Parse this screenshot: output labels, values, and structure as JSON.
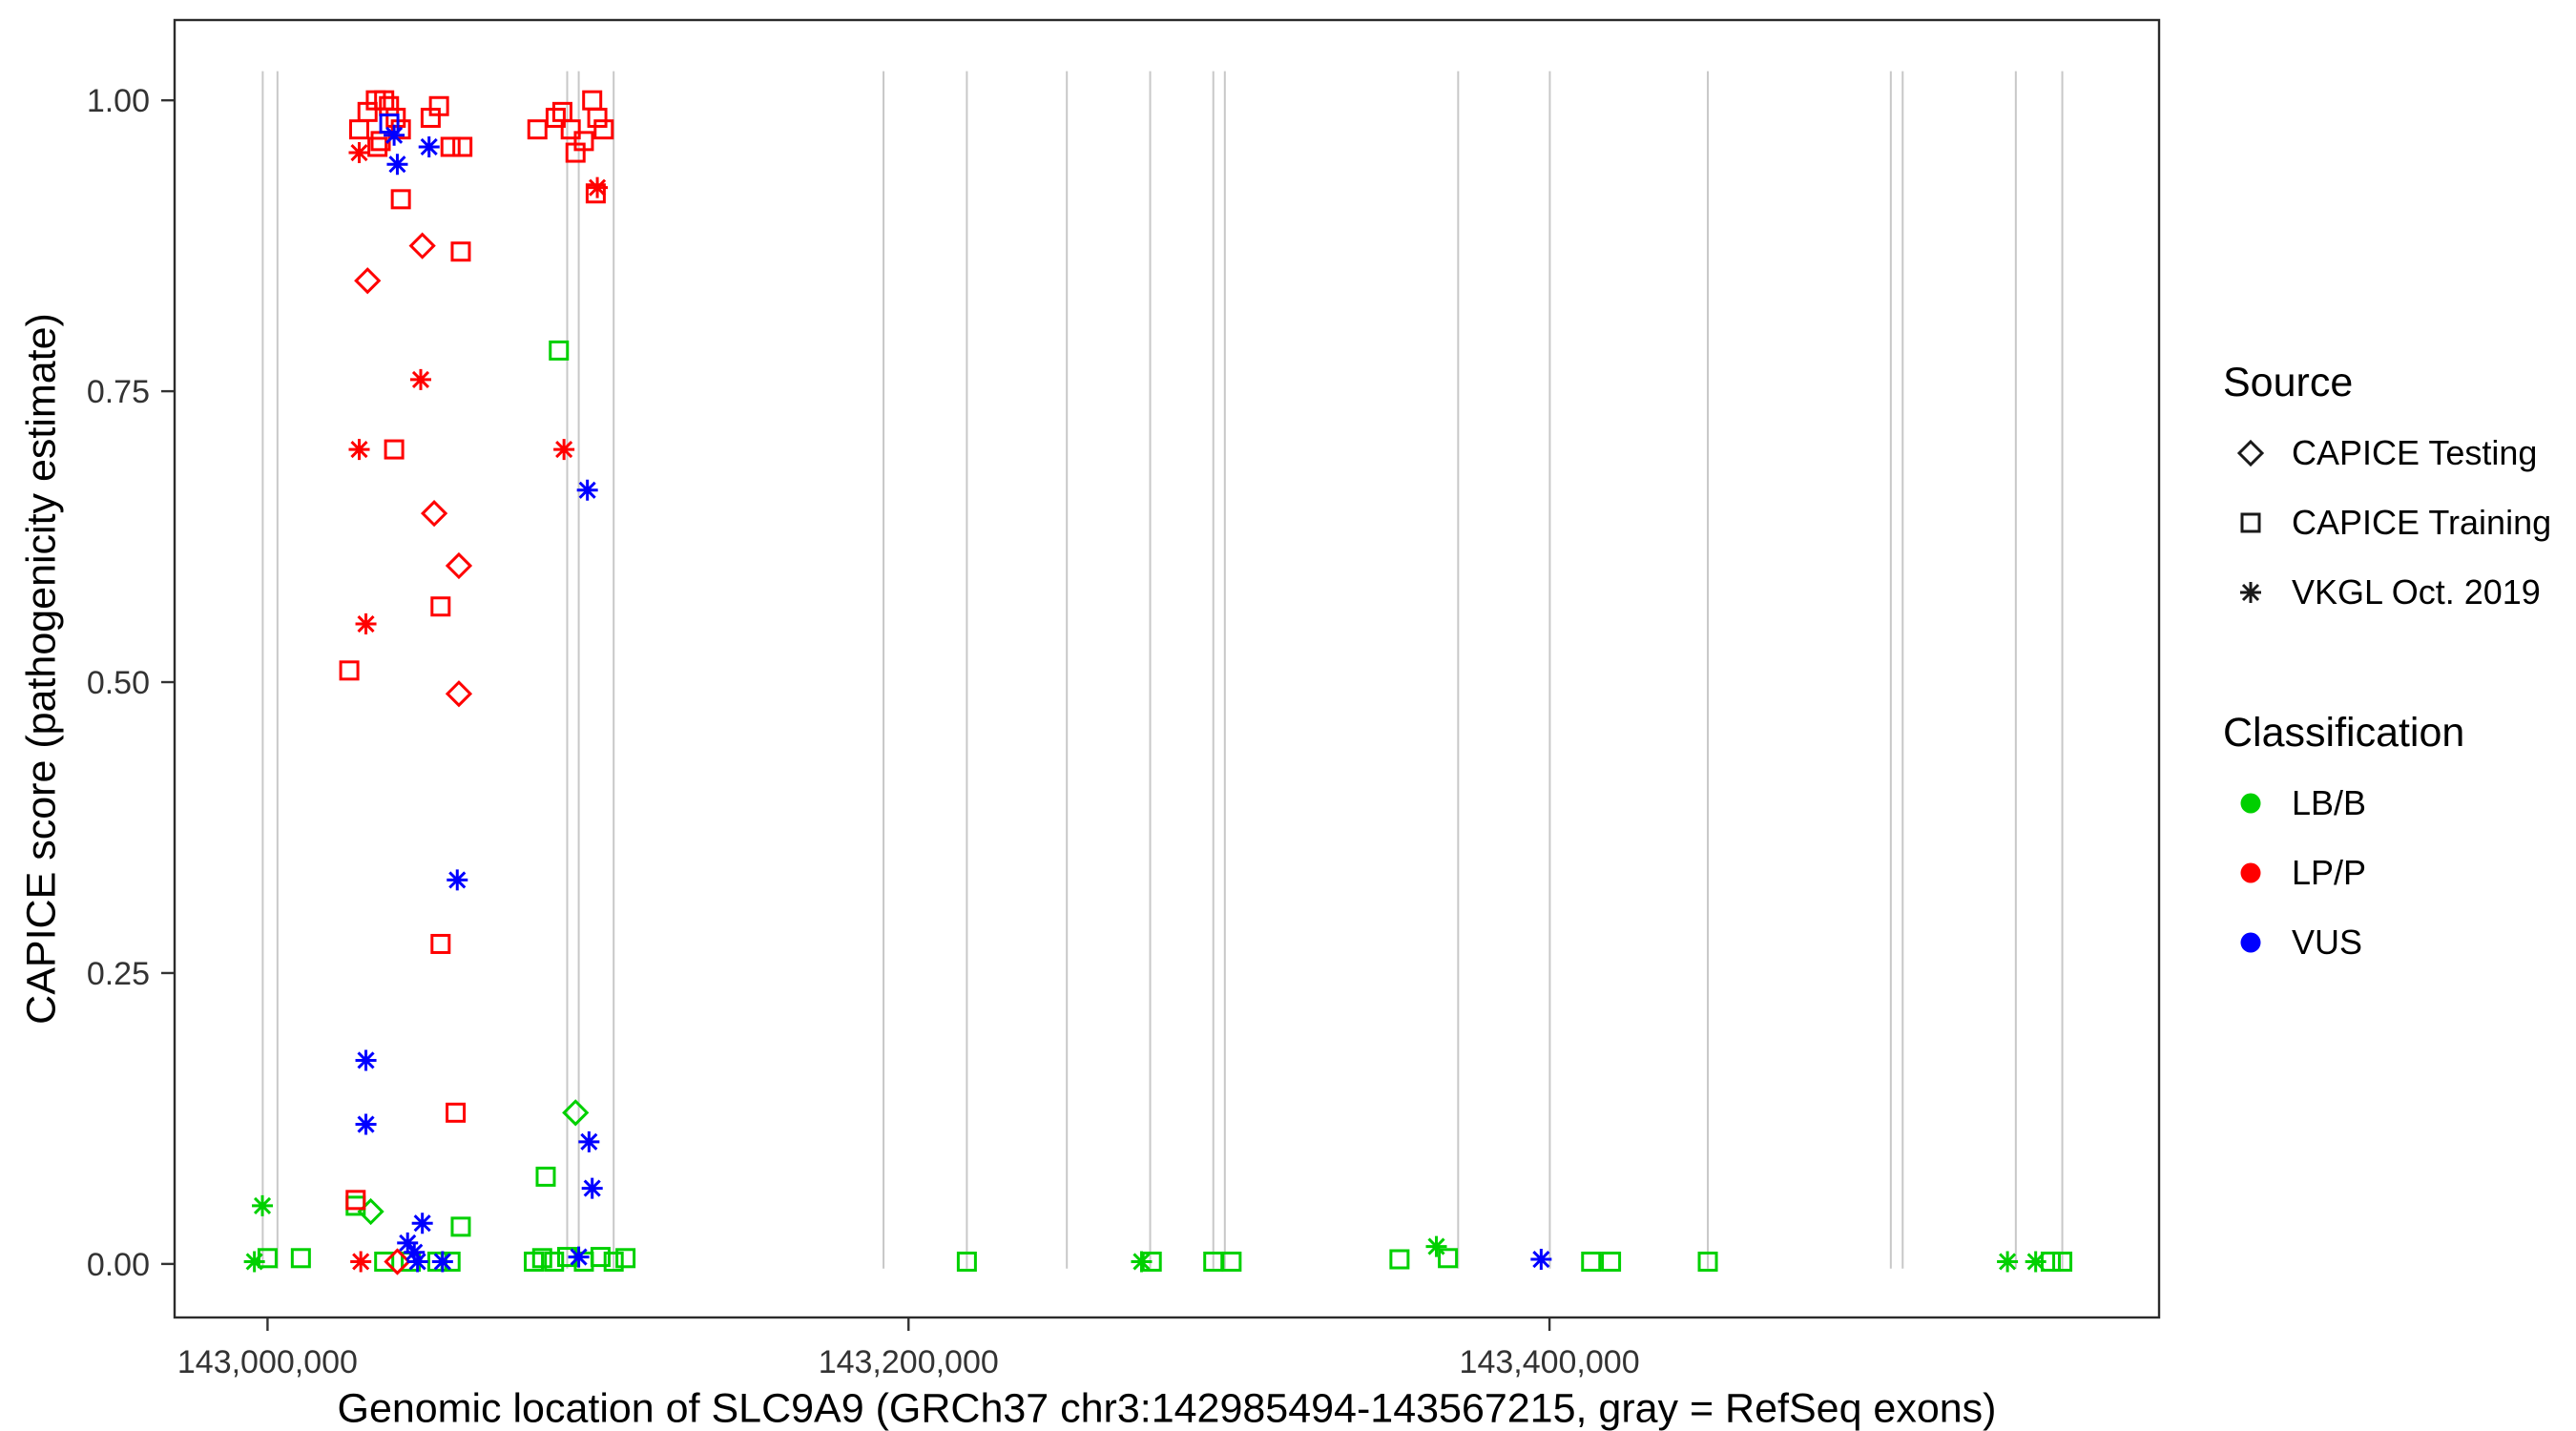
{
  "figure": {
    "xlabel": "Genomic location of SLC9A9 (GRCh37 chr3:142985494-143567215, gray = RefSeq exons)",
    "ylabel": "CAPICE score (pathogenicity estimate)"
  },
  "legend": {
    "source_title": "Source",
    "source_items": [
      {
        "label": "CAPICE Testing",
        "shape": "diamond"
      },
      {
        "label": "CAPICE Training",
        "shape": "square"
      },
      {
        "label": "VKGL Oct. 2019",
        "shape": "asterisk"
      }
    ],
    "classification_title": "Classification",
    "classification_items": [
      {
        "label": "LB/B",
        "color": "#00d000"
      },
      {
        "label": "LP/P",
        "color": "#ff0000"
      },
      {
        "label": "VUS",
        "color": "#0000ff"
      }
    ]
  },
  "chart_data": {
    "type": "scatter",
    "title": "",
    "xlabel": "Genomic location of SLC9A9 (GRCh37 chr3:142985494-143567215, gray = RefSeq exons)",
    "ylabel": "CAPICE score (pathogenicity estimate)",
    "xlim": [
      142971000,
      143590200
    ],
    "ylim": [
      -0.046,
      1.069
    ],
    "grid": false,
    "legend_position": "right",
    "x_ticks": [
      {
        "value": 143000000,
        "label": "143,000,000"
      },
      {
        "value": 143200000,
        "label": "143,200,000"
      },
      {
        "value": 143400000,
        "label": "143,400,000"
      }
    ],
    "y_ticks": [
      {
        "value": 0.0,
        "label": "0.00"
      },
      {
        "value": 0.25,
        "label": "0.25"
      },
      {
        "value": 0.5,
        "label": "0.50"
      },
      {
        "value": 0.75,
        "label": "0.75"
      },
      {
        "value": 1.0,
        "label": "1.00"
      }
    ],
    "exon_color": "#c8c8c8",
    "exon_positions": [
      142998500,
      143003100,
      143093500,
      143097100,
      143108000,
      143192200,
      143218200,
      143249400,
      143275400,
      143295100,
      143298700,
      143371500,
      143400100,
      143449400,
      143506500,
      143510200,
      143545500,
      143560000
    ],
    "colors": {
      "LB/B": "#00d000",
      "LP/P": "#ff0000",
      "VUS": "#0000ff"
    },
    "shape_by_source": {
      "testing": "diamond",
      "training": "square",
      "vkgl": "asterisk"
    },
    "source_labels": {
      "testing": "CAPICE Testing",
      "training": "CAPICE Training",
      "vkgl": "VKGL Oct. 2019"
    },
    "points": [
      [
        142995900,
        0.002,
        "vkgl",
        "LB/B"
      ],
      [
        142998400,
        0.05,
        "vkgl",
        "LB/B"
      ],
      [
        143000000,
        0.005,
        "training",
        "LB/B"
      ],
      [
        143010400,
        0.005,
        "training",
        "LB/B"
      ],
      [
        143027500,
        0.05,
        "training",
        "LB/B"
      ],
      [
        143032200,
        0.045,
        "testing",
        "LB/B"
      ],
      [
        143036400,
        0.002,
        "training",
        "LB/B"
      ],
      [
        143044700,
        0.002,
        "training",
        "LB/B"
      ],
      [
        143053000,
        0.002,
        "training",
        "LB/B"
      ],
      [
        143057100,
        0.002,
        "training",
        "LB/B"
      ],
      [
        143060300,
        0.032,
        "training",
        "LB/B"
      ],
      [
        143083100,
        0.002,
        "training",
        "LB/B"
      ],
      [
        143085700,
        0.005,
        "training",
        "LB/B"
      ],
      [
        143086800,
        0.075,
        "training",
        "LB/B"
      ],
      [
        143089400,
        0.002,
        "training",
        "LB/B"
      ],
      [
        143090900,
        0.785,
        "training",
        "LB/B"
      ],
      [
        143093500,
        0.006,
        "training",
        "LB/B"
      ],
      [
        143096100,
        0.13,
        "testing",
        "LB/B"
      ],
      [
        143098700,
        0.002,
        "training",
        "LB/B"
      ],
      [
        143103900,
        0.006,
        "training",
        "LB/B"
      ],
      [
        143108000,
        0.002,
        "training",
        "LB/B"
      ],
      [
        143111700,
        0.005,
        "training",
        "LB/B"
      ],
      [
        143218200,
        0.002,
        "training",
        "LB/B"
      ],
      [
        143272700,
        0.002,
        "vkgl",
        "LB/B"
      ],
      [
        143275900,
        0.002,
        "training",
        "LB/B"
      ],
      [
        143295100,
        0.002,
        "training",
        "LB/B"
      ],
      [
        143300800,
        0.002,
        "training",
        "LB/B"
      ],
      [
        143353200,
        0.004,
        "training",
        "LB/B"
      ],
      [
        143364700,
        0.015,
        "vkgl",
        "LB/B"
      ],
      [
        143368300,
        0.005,
        "training",
        "LB/B"
      ],
      [
        143413000,
        0.002,
        "training",
        "LB/B"
      ],
      [
        143419200,
        0.002,
        "training",
        "LB/B"
      ],
      [
        143449400,
        0.002,
        "training",
        "LB/B"
      ],
      [
        143542900,
        0.002,
        "vkgl",
        "LB/B"
      ],
      [
        143551700,
        0.002,
        "vkgl",
        "LB/B"
      ],
      [
        143556400,
        0.002,
        "training",
        "LB/B"
      ],
      [
        143560000,
        0.002,
        "training",
        "LB/B"
      ],
      [
        143028600,
        0.975,
        "training",
        "LP/P"
      ],
      [
        143031200,
        0.99,
        "training",
        "LP/P"
      ],
      [
        143033800,
        1.0,
        "training",
        "LP/P"
      ],
      [
        143036400,
        1.0,
        "training",
        "LP/P"
      ],
      [
        143037900,
        0.995,
        "training",
        "LP/P"
      ],
      [
        143040000,
        0.985,
        "training",
        "LP/P"
      ],
      [
        143041600,
        0.975,
        "training",
        "LP/P"
      ],
      [
        143035300,
        0.965,
        "training",
        "LP/P"
      ],
      [
        143034300,
        0.96,
        "training",
        "LP/P"
      ],
      [
        143050900,
        0.985,
        "training",
        "LP/P"
      ],
      [
        143053500,
        0.995,
        "training",
        "LP/P"
      ],
      [
        143057100,
        0.96,
        "training",
        "LP/P"
      ],
      [
        143060800,
        0.96,
        "training",
        "LP/P"
      ],
      [
        143041600,
        0.915,
        "training",
        "LP/P"
      ],
      [
        143060300,
        0.87,
        "training",
        "LP/P"
      ],
      [
        143039500,
        0.7,
        "training",
        "LP/P"
      ],
      [
        143054000,
        0.565,
        "training",
        "LP/P"
      ],
      [
        143025500,
        0.51,
        "training",
        "LP/P"
      ],
      [
        143054000,
        0.275,
        "training",
        "LP/P"
      ],
      [
        143058700,
        0.13,
        "training",
        "LP/P"
      ],
      [
        143027500,
        0.055,
        "training",
        "LP/P"
      ],
      [
        143048300,
        0.875,
        "testing",
        "LP/P"
      ],
      [
        143031200,
        0.845,
        "testing",
        "LP/P"
      ],
      [
        143052000,
        0.645,
        "testing",
        "LP/P"
      ],
      [
        143059700,
        0.6,
        "testing",
        "LP/P"
      ],
      [
        143059700,
        0.49,
        "testing",
        "LP/P"
      ],
      [
        143040500,
        0.002,
        "testing",
        "LP/P"
      ],
      [
        143028600,
        0.955,
        "vkgl",
        "LP/P"
      ],
      [
        143047800,
        0.76,
        "vkgl",
        "LP/P"
      ],
      [
        143028600,
        0.7,
        "vkgl",
        "LP/P"
      ],
      [
        143030700,
        0.55,
        "vkgl",
        "LP/P"
      ],
      [
        143029100,
        0.002,
        "vkgl",
        "LP/P"
      ],
      [
        143084200,
        0.975,
        "training",
        "LP/P"
      ],
      [
        143089900,
        0.985,
        "training",
        "LP/P"
      ],
      [
        143092000,
        0.99,
        "training",
        "LP/P"
      ],
      [
        143094600,
        0.975,
        "training",
        "LP/P"
      ],
      [
        143101300,
        1.0,
        "training",
        "LP/P"
      ],
      [
        143102900,
        0.985,
        "training",
        "LP/P"
      ],
      [
        143104900,
        0.975,
        "training",
        "LP/P"
      ],
      [
        143098700,
        0.965,
        "training",
        "LP/P"
      ],
      [
        143096100,
        0.955,
        "training",
        "LP/P"
      ],
      [
        143102400,
        0.92,
        "training",
        "LP/P"
      ],
      [
        143102900,
        0.925,
        "vkgl",
        "LP/P"
      ],
      [
        143092500,
        0.7,
        "vkgl",
        "LP/P"
      ],
      [
        143038000,
        0.98,
        "training",
        "VUS"
      ],
      [
        143039500,
        0.97,
        "vkgl",
        "VUS"
      ],
      [
        143040500,
        0.945,
        "vkgl",
        "VUS"
      ],
      [
        143050400,
        0.96,
        "vkgl",
        "VUS"
      ],
      [
        143059200,
        0.33,
        "vkgl",
        "VUS"
      ],
      [
        143030700,
        0.175,
        "vkgl",
        "VUS"
      ],
      [
        143030700,
        0.12,
        "vkgl",
        "VUS"
      ],
      [
        143048300,
        0.035,
        "vkgl",
        "VUS"
      ],
      [
        143043700,
        0.018,
        "vkgl",
        "VUS"
      ],
      [
        143045800,
        0.01,
        "vkgl",
        "VUS"
      ],
      [
        143046800,
        0.002,
        "vkgl",
        "VUS"
      ],
      [
        143054600,
        0.002,
        "vkgl",
        "VUS"
      ],
      [
        143099800,
        0.665,
        "vkgl",
        "VUS"
      ],
      [
        143100300,
        0.105,
        "vkgl",
        "VUS"
      ],
      [
        143101300,
        0.065,
        "vkgl",
        "VUS"
      ],
      [
        143097100,
        0.006,
        "vkgl",
        "VUS"
      ],
      [
        143397400,
        0.004,
        "vkgl",
        "VUS"
      ]
    ]
  }
}
